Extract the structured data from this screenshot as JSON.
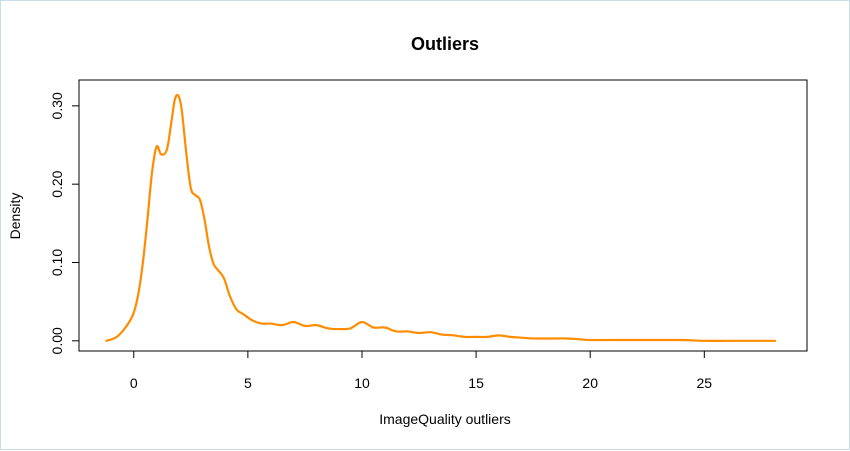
{
  "chart_data": {
    "type": "line",
    "title": "Outliers",
    "xlabel": "ImageQuality outliers",
    "ylabel": "Density",
    "xlim": [
      -2.4,
      29.5
    ],
    "ylim": [
      -0.013,
      0.333
    ],
    "x_ticks": [
      0,
      5,
      10,
      15,
      20,
      25
    ],
    "x_tick_labels": [
      "0",
      "5",
      "10",
      "15",
      "20",
      "25"
    ],
    "y_ticks": [
      0.0,
      0.1,
      0.2,
      0.3
    ],
    "y_tick_labels": [
      "0.00",
      "0.10",
      "0.20",
      "0.30"
    ],
    "grid": false,
    "line_color": "#ff8c00",
    "series": [
      {
        "x": [
          -1.2,
          -0.8,
          -0.5,
          -0.2,
          0.0,
          0.2,
          0.4,
          0.6,
          0.8,
          1.0,
          1.2,
          1.45,
          1.65,
          1.8,
          1.95,
          2.1,
          2.3,
          2.5,
          2.7,
          2.9,
          3.1,
          3.3,
          3.5,
          3.7,
          3.95,
          4.2,
          4.5,
          4.8,
          5.2,
          5.6,
          6.0,
          6.5,
          7.0,
          7.5,
          8.0,
          8.5,
          9.0,
          9.5,
          10.0,
          10.5,
          11.0,
          11.5,
          12.0,
          12.5,
          13.0,
          13.5,
          14.0,
          14.5,
          15.0,
          15.5,
          16.0,
          16.5,
          17.0,
          17.5,
          18.0,
          18.5,
          19.0,
          19.5,
          20.0,
          21.0,
          22.0,
          23.0,
          24.0,
          25.0,
          26.0,
          27.0,
          28.1
        ],
        "y": [
          0.0,
          0.004,
          0.012,
          0.024,
          0.036,
          0.06,
          0.1,
          0.155,
          0.215,
          0.248,
          0.238,
          0.244,
          0.28,
          0.308,
          0.313,
          0.295,
          0.24,
          0.195,
          0.186,
          0.18,
          0.155,
          0.12,
          0.098,
          0.09,
          0.08,
          0.058,
          0.04,
          0.034,
          0.026,
          0.022,
          0.022,
          0.02,
          0.024,
          0.019,
          0.02,
          0.016,
          0.015,
          0.016,
          0.024,
          0.017,
          0.017,
          0.012,
          0.012,
          0.01,
          0.011,
          0.008,
          0.007,
          0.005,
          0.005,
          0.005,
          0.007,
          0.005,
          0.004,
          0.003,
          0.003,
          0.003,
          0.003,
          0.002,
          0.001,
          0.001,
          0.001,
          0.001,
          0.001,
          0.0,
          0.0,
          0.0,
          0.0
        ]
      }
    ]
  }
}
